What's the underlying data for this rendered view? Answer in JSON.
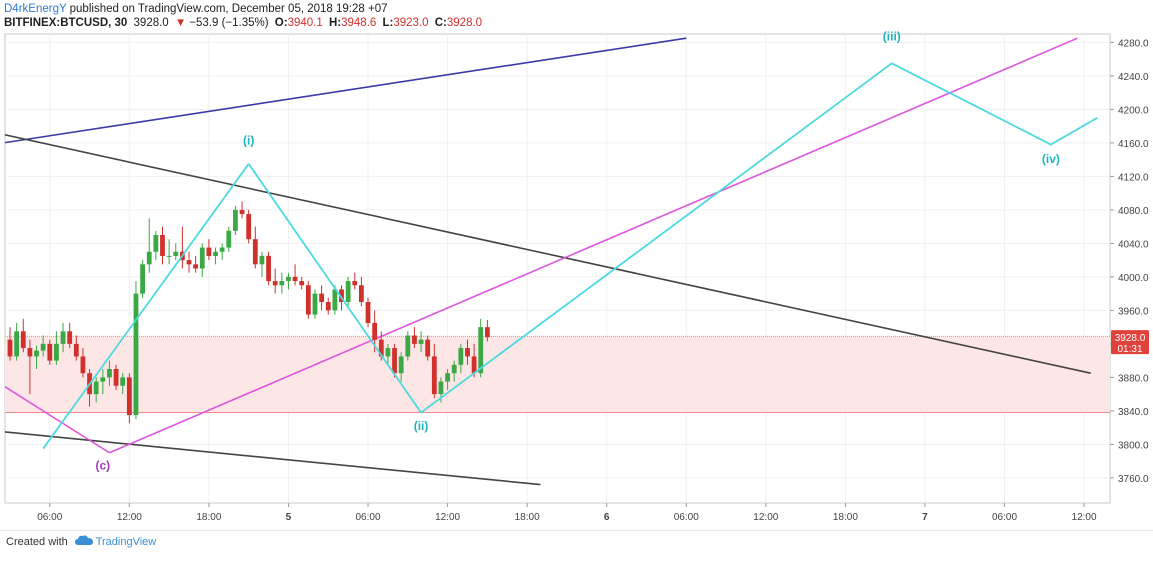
{
  "header": {
    "author": "D4rkEnergY",
    "published": "published on TradingView.com, December 05, 2018 19:28 +07",
    "symbol": "BITFINEX:BTCUSD, 30",
    "last": "3928.0",
    "change_arrow": "▼",
    "change": "−53.9 (−1.35%)",
    "o_label": "O:",
    "o_val": "3940.1",
    "h_label": "H:",
    "h_val": "3948.6",
    "l_label": "L:",
    "l_val": "3923.0",
    "c_label": "C:",
    "c_val": "3928.0"
  },
  "footer": {
    "created_with": "Created with",
    "brand": "TradingView"
  },
  "colors": {
    "up": "#3aa844",
    "down": "#d0312d",
    "wave": "#4dd9e0",
    "magenta": "#dd55dd",
    "blue_line": "#3a3aa8",
    "dark_line": "#444444",
    "zone_fill": "#fde6e6",
    "zone_border": "#f08a8a",
    "price_label_bg": "#e0413a"
  },
  "chart_data": {
    "type": "candlestick",
    "ylim": [
      3730,
      4290
    ],
    "y_ticks": [
      "4280.0",
      "4240.0",
      "4200.0",
      "4160.0",
      "4120.0",
      "4080.0",
      "4040.0",
      "4000.0",
      "3960.0",
      "3920.0",
      "3880.0",
      "3840.0",
      "3800.0",
      "3760.0"
    ],
    "x_ticks": [
      {
        "label": "06:00",
        "bar": 6
      },
      {
        "label": "12:00",
        "bar": 18
      },
      {
        "label": "18:00",
        "bar": 30
      },
      {
        "label": "5",
        "bar": 42
      },
      {
        "label": "06:00",
        "bar": 54
      },
      {
        "label": "12:00",
        "bar": 66
      },
      {
        "label": "18:00",
        "bar": 78
      },
      {
        "label": "6",
        "bar": 90
      },
      {
        "label": "06:00",
        "bar": 102
      },
      {
        "label": "12:00",
        "bar": 114
      },
      {
        "label": "18:00",
        "bar": 126
      },
      {
        "label": "7",
        "bar": 138
      },
      {
        "label": "06:00",
        "bar": 150
      },
      {
        "label": "12:00",
        "bar": 162
      }
    ],
    "current_price": "3928.0",
    "countdown": "01:31",
    "zone": [
      3838,
      3929
    ],
    "candles_ohlc": [
      [
        3925,
        3940,
        3900,
        3905
      ],
      [
        3905,
        3945,
        3900,
        3935
      ],
      [
        3935,
        3950,
        3910,
        3915
      ],
      [
        3915,
        3925,
        3860,
        3905
      ],
      [
        3905,
        3918,
        3890,
        3912
      ],
      [
        3912,
        3930,
        3905,
        3920
      ],
      [
        3920,
        3925,
        3895,
        3900
      ],
      [
        3900,
        3935,
        3895,
        3920
      ],
      [
        3920,
        3945,
        3910,
        3935
      ],
      [
        3935,
        3945,
        3915,
        3920
      ],
      [
        3920,
        3930,
        3900,
        3905
      ],
      [
        3905,
        3915,
        3880,
        3885
      ],
      [
        3885,
        3890,
        3845,
        3860
      ],
      [
        3860,
        3880,
        3850,
        3875
      ],
      [
        3875,
        3890,
        3860,
        3880
      ],
      [
        3880,
        3900,
        3870,
        3890
      ],
      [
        3890,
        3895,
        3865,
        3870
      ],
      [
        3870,
        3885,
        3860,
        3880
      ],
      [
        3880,
        3885,
        3825,
        3835
      ],
      [
        3835,
        3995,
        3830,
        3980
      ],
      [
        3980,
        4020,
        3975,
        4015
      ],
      [
        4015,
        4070,
        4005,
        4030
      ],
      [
        4030,
        4055,
        4020,
        4050
      ],
      [
        4050,
        4060,
        4015,
        4025
      ],
      [
        4025,
        4045,
        4015,
        4025
      ],
      [
        4025,
        4040,
        4020,
        4030
      ],
      [
        4030,
        4060,
        4010,
        4020
      ],
      [
        4020,
        4030,
        4005,
        4015
      ],
      [
        4015,
        4025,
        4005,
        4010
      ],
      [
        4010,
        4040,
        4000,
        4035
      ],
      [
        4035,
        4045,
        4020,
        4025
      ],
      [
        4025,
        4035,
        4015,
        4030
      ],
      [
        4030,
        4040,
        4020,
        4035
      ],
      [
        4035,
        4060,
        4030,
        4055
      ],
      [
        4055,
        4085,
        4050,
        4080
      ],
      [
        4080,
        4090,
        4070,
        4075
      ],
      [
        4075,
        4080,
        4040,
        4045
      ],
      [
        4045,
        4060,
        4010,
        4015
      ],
      [
        4015,
        4030,
        4000,
        4025
      ],
      [
        4025,
        4030,
        3990,
        3995
      ],
      [
        3995,
        4010,
        3980,
        3990
      ],
      [
        3990,
        4005,
        3980,
        3995
      ],
      [
        3995,
        4005,
        3985,
        4000
      ],
      [
        4000,
        4015,
        3990,
        3995
      ],
      [
        3995,
        4000,
        3985,
        3990
      ],
      [
        3990,
        3995,
        3950,
        3955
      ],
      [
        3955,
        3985,
        3950,
        3980
      ],
      [
        3980,
        3990,
        3960,
        3970
      ],
      [
        3970,
        3975,
        3955,
        3960
      ],
      [
        3960,
        3990,
        3955,
        3985
      ],
      [
        3985,
        3990,
        3960,
        3970
      ],
      [
        3970,
        4000,
        3965,
        3995
      ],
      [
        3995,
        4005,
        3985,
        3990
      ],
      [
        3990,
        4000,
        3965,
        3970
      ],
      [
        3970,
        3975,
        3940,
        3945
      ],
      [
        3945,
        3960,
        3910,
        3925
      ],
      [
        3925,
        3935,
        3900,
        3905
      ],
      [
        3905,
        3920,
        3895,
        3915
      ],
      [
        3915,
        3920,
        3880,
        3885
      ],
      [
        3885,
        3910,
        3875,
        3905
      ],
      [
        3905,
        3935,
        3900,
        3930
      ],
      [
        3930,
        3940,
        3915,
        3920
      ],
      [
        3920,
        3935,
        3910,
        3925
      ],
      [
        3925,
        3930,
        3900,
        3905
      ],
      [
        3905,
        3920,
        3855,
        3860
      ],
      [
        3860,
        3880,
        3850,
        3875
      ],
      [
        3875,
        3890,
        3865,
        3885
      ],
      [
        3885,
        3900,
        3875,
        3895
      ],
      [
        3895,
        3920,
        3885,
        3915
      ],
      [
        3915,
        3925,
        3895,
        3905
      ],
      [
        3905,
        3920,
        3880,
        3885
      ],
      [
        3885,
        3950,
        3880,
        3940
      ],
      [
        3940,
        3948.6,
        3923,
        3928
      ]
    ],
    "waves": [
      {
        "label": "(i)",
        "points": [
          [
            5,
            3795
          ],
          [
            36,
            4135
          ]
        ]
      },
      {
        "label": "(ii)",
        "points": [
          [
            36,
            4135
          ],
          [
            62,
            3838
          ]
        ]
      },
      {
        "label": "(iii)",
        "points": [
          [
            62,
            3838
          ],
          [
            133,
            4255
          ]
        ]
      },
      {
        "label": "(iv)",
        "points": [
          [
            133,
            4255
          ],
          [
            157,
            4158
          ],
          [
            164,
            4190
          ]
        ]
      }
    ],
    "wave_labels": [
      {
        "text": "(i)",
        "bar": 36,
        "y": 4158,
        "color": "wave"
      },
      {
        "text": "(ii)",
        "bar": 62,
        "y": 3817,
        "color": "wave"
      },
      {
        "text": "(iii)",
        "bar": 133,
        "y": 4282,
        "color": "wave"
      },
      {
        "text": "(iv)",
        "bar": 157,
        "y": 4136,
        "color": "wave"
      },
      {
        "text": "(c)",
        "bar": 14,
        "y": 3770,
        "color": "magenta"
      }
    ],
    "trendlines": [
      {
        "name": "blue-upper",
        "color": "blue_line",
        "points": [
          [
            -1,
            4160
          ],
          [
            102,
            4285
          ]
        ]
      },
      {
        "name": "black-descending",
        "color": "dark_line",
        "points": [
          [
            -1,
            4170
          ],
          [
            163,
            3885
          ]
        ]
      },
      {
        "name": "black-lower",
        "color": "dark_line",
        "points": [
          [
            -1,
            3815
          ],
          [
            80,
            3752
          ]
        ]
      },
      {
        "name": "magenta-channel",
        "color": "magenta",
        "points": [
          [
            15,
            3790
          ],
          [
            161,
            4285
          ]
        ]
      },
      {
        "name": "magenta-left",
        "color": "magenta",
        "points": [
          [
            -1,
            3870
          ],
          [
            15,
            3790
          ]
        ]
      }
    ]
  }
}
